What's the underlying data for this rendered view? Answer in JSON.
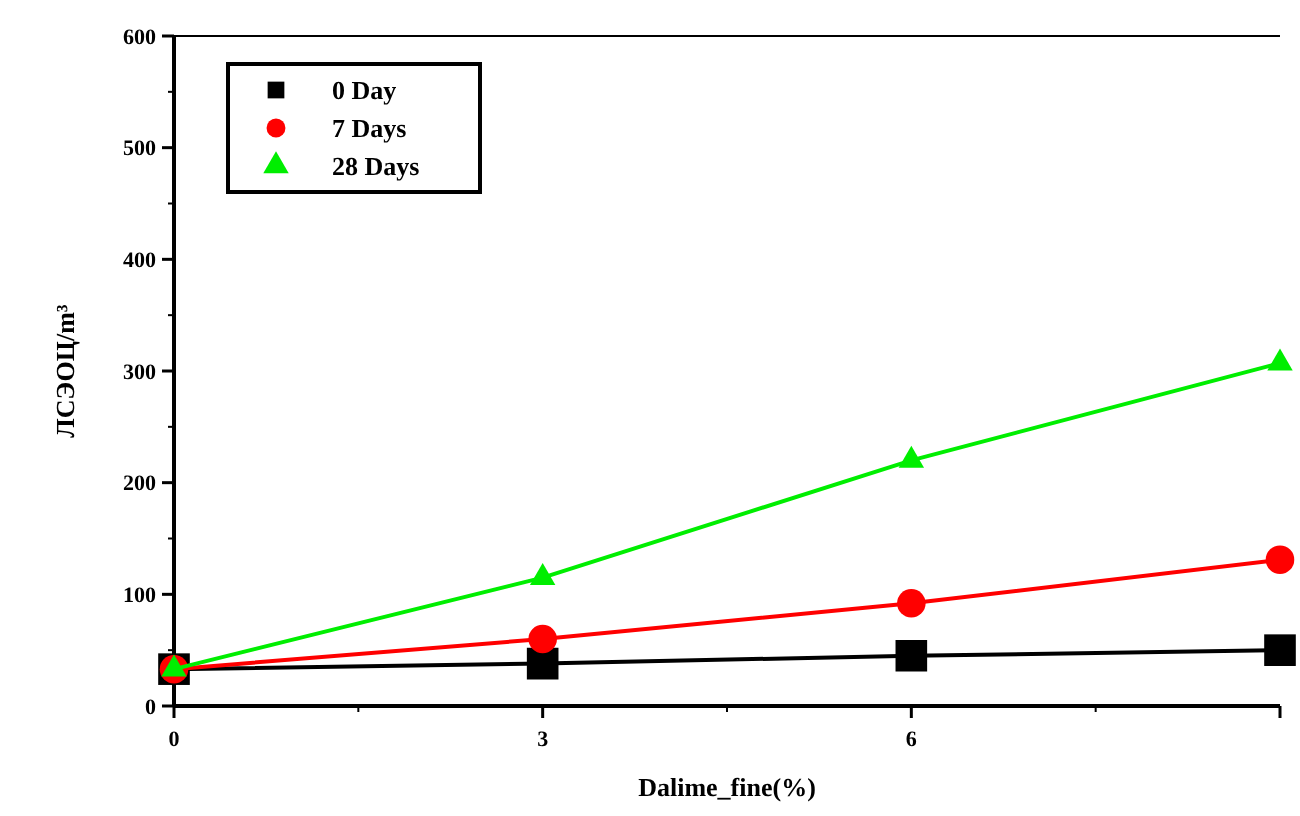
{
  "chart_data": {
    "type": "line",
    "xlabel": "Dalime_fine(%)",
    "ylabel": "ЛСЭОЦ/m³",
    "x": [
      0,
      3,
      6,
      9
    ],
    "xlim": [
      0,
      9
    ],
    "xticks": [
      0,
      3,
      6,
      {
        "value": 9,
        "label": null
      }
    ],
    "ylim": [
      0,
      600
    ],
    "yticks": [
      0,
      100,
      200,
      300,
      400,
      500,
      600
    ],
    "grid": false,
    "legend": "top left",
    "series": [
      {
        "name": "0 Day",
        "color": "#000000",
        "marker": "square",
        "values": [
          33,
          38,
          45,
          50
        ]
      },
      {
        "name": "7 Days",
        "color": "#ff0000",
        "marker": "circle",
        "values": [
          33,
          60,
          92,
          131
        ]
      },
      {
        "name": "28 Days",
        "color": "#00ee00",
        "marker": "triangle",
        "values": [
          33,
          115,
          220,
          307
        ]
      }
    ]
  }
}
